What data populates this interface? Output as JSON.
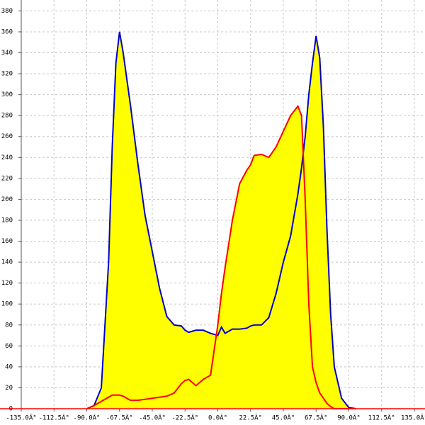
{
  "chart_data": {
    "type": "area",
    "x": [
      -90,
      -85,
      -80,
      -75,
      -72.5,
      -70,
      -67.5,
      -65,
      -60,
      -55,
      -50,
      -45,
      -40,
      -35,
      -30,
      -25,
      -22.5,
      -20,
      -15,
      -10,
      -5,
      0,
      2.5,
      5,
      10,
      15,
      20,
      22.5,
      25,
      30,
      35,
      40,
      45,
      50,
      55,
      57.5,
      60,
      62.5,
      65,
      67.5,
      70,
      72.5,
      75,
      77.5,
      80,
      85,
      90,
      95
    ],
    "series": [
      {
        "color": "#0000cc",
        "fill": "#ffff00",
        "values": [
          0,
          3,
          20,
          140,
          250,
          330,
          360,
          340,
          290,
          235,
          185,
          150,
          115,
          88,
          80,
          79,
          75,
          73,
          75,
          75,
          72,
          70,
          78,
          72,
          76,
          76,
          77,
          79,
          80,
          80,
          87,
          110,
          140,
          165,
          205,
          230,
          260,
          300,
          330,
          356,
          335,
          270,
          170,
          90,
          40,
          10,
          1,
          0
        ]
      },
      {
        "color": "#ff0000",
        "fill": "#ffff00",
        "values": [
          0,
          3,
          7,
          11,
          13,
          13,
          13,
          12,
          8,
          8,
          9,
          10,
          11,
          12,
          15,
          24,
          27,
          28,
          22,
          28,
          32,
          80,
          110,
          135,
          180,
          215,
          228,
          233,
          242,
          243,
          240,
          250,
          265,
          280,
          289,
          280,
          200,
          100,
          40,
          25,
          15,
          10,
          5,
          2,
          0,
          0,
          0,
          0
        ]
      }
    ],
    "xlim": [
      -135,
      135
    ],
    "xticks": [
      {
        "value": -135,
        "label": "-135.0Â°"
      },
      {
        "value": -112.5,
        "label": "-112.5Â°"
      },
      {
        "value": -90,
        "label": "-90.0Â°"
      },
      {
        "value": -67.5,
        "label": "-67.5Â°"
      },
      {
        "value": -45,
        "label": "-45.0Â°"
      },
      {
        "value": -22.5,
        "label": "-22.5Â°"
      },
      {
        "value": 0,
        "label": "0.0Â°"
      },
      {
        "value": 22.5,
        "label": "22.5Â°"
      },
      {
        "value": 45,
        "label": "45.0Â°"
      },
      {
        "value": 67.5,
        "label": "67.5Â°"
      },
      {
        "value": 90,
        "label": "90.0Â°"
      },
      {
        "value": 112.5,
        "label": "112.5Â°"
      },
      {
        "value": 135,
        "label": "135.0Â°"
      }
    ],
    "ylim": [
      0,
      380
    ],
    "yticks": [
      0,
      20,
      40,
      60,
      80,
      100,
      120,
      140,
      160,
      180,
      200,
      220,
      240,
      260,
      280,
      300,
      320,
      340,
      360,
      380
    ],
    "grid": true
  }
}
